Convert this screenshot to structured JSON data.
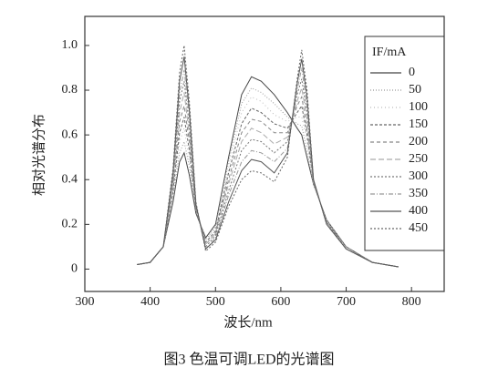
{
  "chart_data": {
    "type": "line",
    "caption": "图3 色温可调LED的光谱图",
    "xlabel": "波长/nm",
    "ylabel": "相对光谱分布",
    "legend_title": "IF/mA",
    "xlim": [
      300,
      850
    ],
    "ylim": [
      -0.1,
      1.13
    ],
    "xticks": [
      300,
      400,
      500,
      600,
      700,
      800
    ],
    "yticks": [
      0,
      0.2,
      0.4,
      0.6,
      0.8,
      {
        "value": 1,
        "label": "1.0"
      }
    ],
    "x": [
      380,
      400,
      420,
      435,
      445,
      452,
      460,
      470,
      485,
      500,
      520,
      540,
      555,
      570,
      590,
      610,
      625,
      632,
      640,
      650,
      670,
      700,
      740,
      780
    ],
    "series": [
      {
        "name": "0",
        "color": "#444444",
        "values": [
          0.02,
          0.03,
          0.1,
          0.3,
          0.48,
          0.52,
          0.42,
          0.25,
          0.14,
          0.2,
          0.5,
          0.78,
          0.86,
          0.84,
          0.78,
          0.7,
          0.63,
          0.6,
          0.5,
          0.38,
          0.22,
          0.1,
          0.03,
          0.01
        ]
      },
      {
        "name": "50",
        "color": "#999999",
        "values": [
          0.02,
          0.03,
          0.1,
          0.32,
          0.52,
          0.57,
          0.46,
          0.26,
          0.13,
          0.19,
          0.48,
          0.74,
          0.81,
          0.79,
          0.74,
          0.68,
          0.65,
          0.64,
          0.53,
          0.38,
          0.22,
          0.1,
          0.03,
          0.01
        ]
      },
      {
        "name": "100",
        "color": "#bbbbbb",
        "values": [
          0.02,
          0.03,
          0.1,
          0.33,
          0.57,
          0.63,
          0.49,
          0.26,
          0.13,
          0.18,
          0.45,
          0.7,
          0.77,
          0.75,
          0.69,
          0.66,
          0.68,
          0.68,
          0.57,
          0.38,
          0.22,
          0.1,
          0.03,
          0.01
        ]
      },
      {
        "name": "150",
        "color": "#666666",
        "values": [
          0.02,
          0.03,
          0.1,
          0.35,
          0.61,
          0.68,
          0.53,
          0.27,
          0.12,
          0.17,
          0.43,
          0.65,
          0.72,
          0.7,
          0.65,
          0.63,
          0.7,
          0.73,
          0.6,
          0.39,
          0.21,
          0.1,
          0.03,
          0.01
        ]
      },
      {
        "name": "200",
        "color": "#888888",
        "values": [
          0.02,
          0.03,
          0.1,
          0.37,
          0.66,
          0.73,
          0.57,
          0.27,
          0.11,
          0.16,
          0.4,
          0.61,
          0.67,
          0.66,
          0.61,
          0.61,
          0.73,
          0.77,
          0.63,
          0.39,
          0.21,
          0.1,
          0.03,
          0.01
        ]
      },
      {
        "name": "250",
        "color": "#aaaaaa",
        "values": [
          0.02,
          0.03,
          0.1,
          0.38,
          0.7,
          0.79,
          0.6,
          0.28,
          0.11,
          0.16,
          0.38,
          0.57,
          0.63,
          0.61,
          0.56,
          0.59,
          0.75,
          0.81,
          0.67,
          0.39,
          0.21,
          0.09,
          0.03,
          0.01
        ]
      },
      {
        "name": "300",
        "color": "#777777",
        "values": [
          0.02,
          0.03,
          0.1,
          0.4,
          0.75,
          0.84,
          0.64,
          0.28,
          0.1,
          0.15,
          0.35,
          0.53,
          0.58,
          0.57,
          0.52,
          0.57,
          0.78,
          0.85,
          0.7,
          0.39,
          0.21,
          0.09,
          0.03,
          0.01
        ]
      },
      {
        "name": "350",
        "color": "#999999",
        "values": [
          0.02,
          0.03,
          0.1,
          0.42,
          0.79,
          0.89,
          0.68,
          0.29,
          0.09,
          0.14,
          0.33,
          0.48,
          0.53,
          0.52,
          0.48,
          0.54,
          0.8,
          0.9,
          0.73,
          0.4,
          0.2,
          0.09,
          0.03,
          0.01
        ]
      },
      {
        "name": "400",
        "color": "#555555",
        "values": [
          0.02,
          0.03,
          0.1,
          0.43,
          0.84,
          0.95,
          0.71,
          0.29,
          0.09,
          0.13,
          0.3,
          0.44,
          0.49,
          0.48,
          0.43,
          0.52,
          0.83,
          0.94,
          0.77,
          0.4,
          0.2,
          0.09,
          0.03,
          0.01
        ]
      },
      {
        "name": "450",
        "color": "#666666",
        "values": [
          0.02,
          0.03,
          0.1,
          0.45,
          0.88,
          1.0,
          0.75,
          0.3,
          0.08,
          0.12,
          0.28,
          0.4,
          0.44,
          0.43,
          0.39,
          0.5,
          0.85,
          0.98,
          0.8,
          0.4,
          0.2,
          0.09,
          0.03,
          0.01
        ]
      }
    ]
  }
}
